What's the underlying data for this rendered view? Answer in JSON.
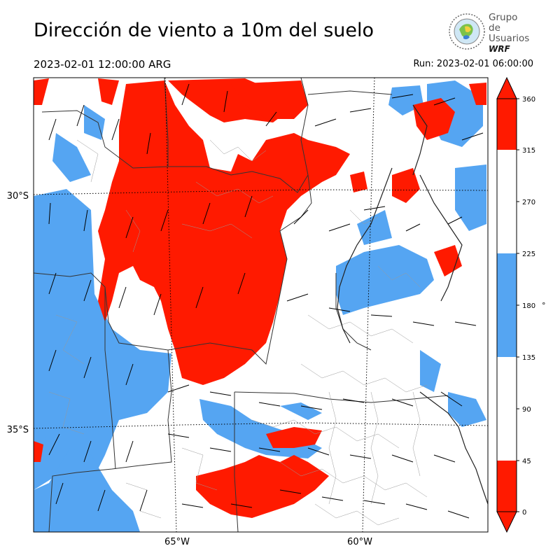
{
  "header": {
    "title": "Dirección de viento a 10m del suelo",
    "valid_time": "2023-02-01 12:00:00 ARG",
    "run_time": "Run: 2023-02-01 06:00:00"
  },
  "logo": {
    "line1": "Grupo de",
    "line2": "Usuarios",
    "line3": "WRF"
  },
  "map": {
    "lat_labels": [
      "30°S",
      "35°S"
    ],
    "lon_labels": [
      "65°W",
      "60°W"
    ]
  },
  "colorbar": {
    "unit": "°",
    "ticks": [
      "0",
      "45",
      "90",
      "135",
      "180",
      "225",
      "270",
      "315",
      "360"
    ],
    "colors": {
      "north": "#ff1a00",
      "south": "#55a5f2",
      "east_west": "#ffffff"
    }
  }
}
